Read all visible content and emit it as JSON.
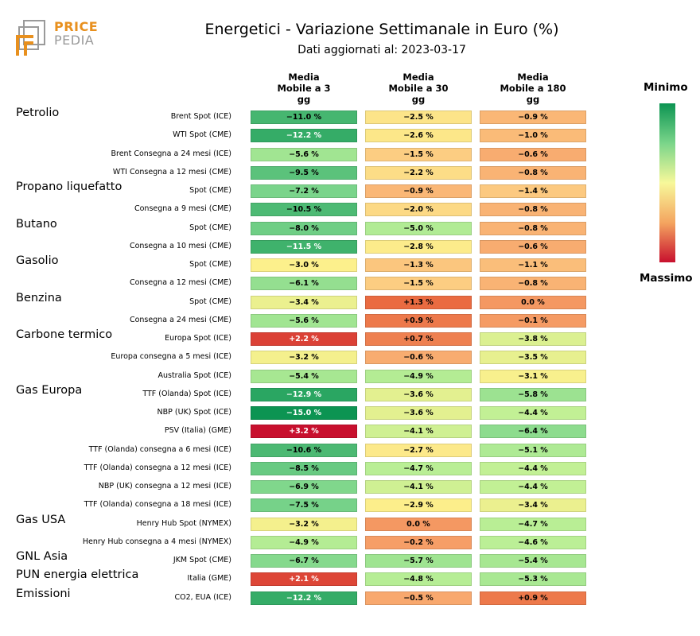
{
  "header": {
    "title": "Energetici - Variazione Settimanale in Euro (%)",
    "subtitle": "Dati aggiornati al: 2023-03-17"
  },
  "logo": {
    "text_top": "PRICE",
    "text_bottom": "PEDIA",
    "color_accent": "#e8901e",
    "color_grey": "#9a9a9a"
  },
  "legend": {
    "top": "Minimo",
    "bottom": "Massimo"
  },
  "chart_data": {
    "type": "table",
    "title": "Energetici - Variazione Settimanale in Euro (%)",
    "columns": [
      "Media\nMobile a 3\ngg",
      "Media\nMobile a 30\ngg",
      "Media\nMobile a 180\ngg"
    ],
    "groups": [
      {
        "name": "Petrolio",
        "start": 0
      },
      {
        "name": "Propano liquefatto",
        "start": 4
      },
      {
        "name": "Butano",
        "start": 6
      },
      {
        "name": "Gasolio",
        "start": 8
      },
      {
        "name": "Benzina",
        "start": 10
      },
      {
        "name": "Carbone termico",
        "start": 12
      },
      {
        "name": "Gas Europa",
        "start": 15
      },
      {
        "name": "Gas USA",
        "start": 22
      },
      {
        "name": "GNL Asia",
        "start": 24
      },
      {
        "name": "PUN energia elettrica",
        "start": 25
      },
      {
        "name": "Emissioni",
        "start": 26
      }
    ],
    "rows": [
      {
        "label": "Brent Spot (ICE)",
        "values": [
          -11.0,
          -2.5,
          -0.9
        ],
        "text": [
          "−11.0 %",
          "−2.5 %",
          "−0.9 %"
        ]
      },
      {
        "label": "WTI Spot (CME)",
        "values": [
          -12.2,
          -2.6,
          -1.0
        ],
        "text": [
          "−12.2 %",
          "−2.6 %",
          "−1.0 %"
        ]
      },
      {
        "label": "Brent Consegna a 24 mesi (ICE)",
        "values": [
          -5.6,
          -1.5,
          -0.6
        ],
        "text": [
          "−5.6 %",
          "−1.5 %",
          "−0.6 %"
        ]
      },
      {
        "label": "WTI Consegna a 12 mesi (CME)",
        "values": [
          -9.5,
          -2.2,
          -0.8
        ],
        "text": [
          "−9.5 %",
          "−2.2 %",
          "−0.8 %"
        ]
      },
      {
        "label": "Spot (CME)",
        "values": [
          -7.2,
          -0.9,
          -1.4
        ],
        "text": [
          "−7.2 %",
          "−0.9 %",
          "−1.4 %"
        ]
      },
      {
        "label": "Consegna a 9 mesi (CME)",
        "values": [
          -10.5,
          -2.0,
          -0.8
        ],
        "text": [
          "−10.5 %",
          "−2.0 %",
          "−0.8 %"
        ]
      },
      {
        "label": "Spot (CME)",
        "values": [
          -8.0,
          -5.0,
          -0.8
        ],
        "text": [
          "−8.0 %",
          "−5.0 %",
          "−0.8 %"
        ]
      },
      {
        "label": "Consegna a 10 mesi (CME)",
        "values": [
          -11.5,
          -2.8,
          -0.6
        ],
        "text": [
          "−11.5 %",
          "−2.8 %",
          "−0.6 %"
        ]
      },
      {
        "label": "Spot (CME)",
        "values": [
          -3.0,
          -1.3,
          -1.1
        ],
        "text": [
          "−3.0 %",
          "−1.3 %",
          "−1.1 %"
        ]
      },
      {
        "label": "Consegna a 12 mesi (CME)",
        "values": [
          -6.1,
          -1.5,
          -0.8
        ],
        "text": [
          "−6.1 %",
          "−1.5 %",
          "−0.8 %"
        ]
      },
      {
        "label": "Spot (CME)",
        "values": [
          -3.4,
          1.3,
          0.0
        ],
        "text": [
          "−3.4 %",
          "+1.3 %",
          "0.0 %"
        ]
      },
      {
        "label": "Consegna a 24 mesi (CME)",
        "values": [
          -5.6,
          0.9,
          -0.1
        ],
        "text": [
          "−5.6 %",
          "+0.9 %",
          "−0.1 %"
        ]
      },
      {
        "label": "Europa Spot (ICE)",
        "values": [
          2.2,
          0.7,
          -3.8
        ],
        "text": [
          "+2.2 %",
          "+0.7 %",
          "−3.8 %"
        ]
      },
      {
        "label": "Europa consegna a 5 mesi (ICE)",
        "values": [
          -3.2,
          -0.6,
          -3.5
        ],
        "text": [
          "−3.2 %",
          "−0.6 %",
          "−3.5 %"
        ]
      },
      {
        "label": "Australia Spot (ICE)",
        "values": [
          -5.4,
          -4.9,
          -3.1
        ],
        "text": [
          "−5.4 %",
          "−4.9 %",
          "−3.1 %"
        ]
      },
      {
        "label": "TTF (Olanda) Spot (ICE)",
        "values": [
          -12.9,
          -3.6,
          -5.8
        ],
        "text": [
          "−12.9 %",
          "−3.6 %",
          "−5.8 %"
        ]
      },
      {
        "label": "NBP (UK) Spot (ICE)",
        "values": [
          -15.0,
          -3.6,
          -4.4
        ],
        "text": [
          "−15.0 %",
          "−3.6 %",
          "−4.4 %"
        ]
      },
      {
        "label": "PSV (Italia) (GME)",
        "values": [
          3.2,
          -4.1,
          -6.4
        ],
        "text": [
          "+3.2 %",
          "−4.1 %",
          "−6.4 %"
        ]
      },
      {
        "label": "TTF (Olanda) consegna a 6 mesi (ICE)",
        "values": [
          -10.6,
          -2.7,
          -5.1
        ],
        "text": [
          "−10.6 %",
          "−2.7 %",
          "−5.1 %"
        ]
      },
      {
        "label": "TTF (Olanda) consegna a 12 mesi (ICE)",
        "values": [
          -8.5,
          -4.7,
          -4.4
        ],
        "text": [
          "−8.5 %",
          "−4.7 %",
          "−4.4 %"
        ]
      },
      {
        "label": "NBP (UK) consegna a 12 mesi (ICE)",
        "values": [
          -6.9,
          -4.1,
          -4.4
        ],
        "text": [
          "−6.9 %",
          "−4.1 %",
          "−4.4 %"
        ]
      },
      {
        "label": "TTF (Olanda) consegna a 18 mesi (ICE)",
        "values": [
          -7.5,
          -2.9,
          -3.4
        ],
        "text": [
          "−7.5 %",
          "−2.9 %",
          "−3.4 %"
        ]
      },
      {
        "label": "Henry Hub Spot (NYMEX)",
        "values": [
          -3.2,
          0.0,
          -4.7
        ],
        "text": [
          "−3.2 %",
          "0.0 %",
          "−4.7 %"
        ]
      },
      {
        "label": "Henry Hub consegna a 4 mesi (NYMEX)",
        "values": [
          -4.9,
          -0.2,
          -4.6
        ],
        "text": [
          "−4.9 %",
          "−0.2 %",
          "−4.6 %"
        ]
      },
      {
        "label": "JKM Spot (CME)",
        "values": [
          -6.7,
          -5.7,
          -5.4
        ],
        "text": [
          "−6.7 %",
          "−5.7 %",
          "−5.4 %"
        ]
      },
      {
        "label": "Italia (GME)",
        "values": [
          2.1,
          -4.8,
          -5.3
        ],
        "text": [
          "+2.1 %",
          "−4.8 %",
          "−5.3 %"
        ]
      },
      {
        "label": "CO2, EUA (ICE)",
        "values": [
          -12.2,
          -0.5,
          0.9
        ],
        "text": [
          "−12.2 %",
          "−0.5 %",
          "+0.9 %"
        ]
      }
    ],
    "color_scale": {
      "min_color": "#0c9452",
      "max_color": "#c8102e",
      "note": "green = Minimo, red = Massimo"
    }
  }
}
